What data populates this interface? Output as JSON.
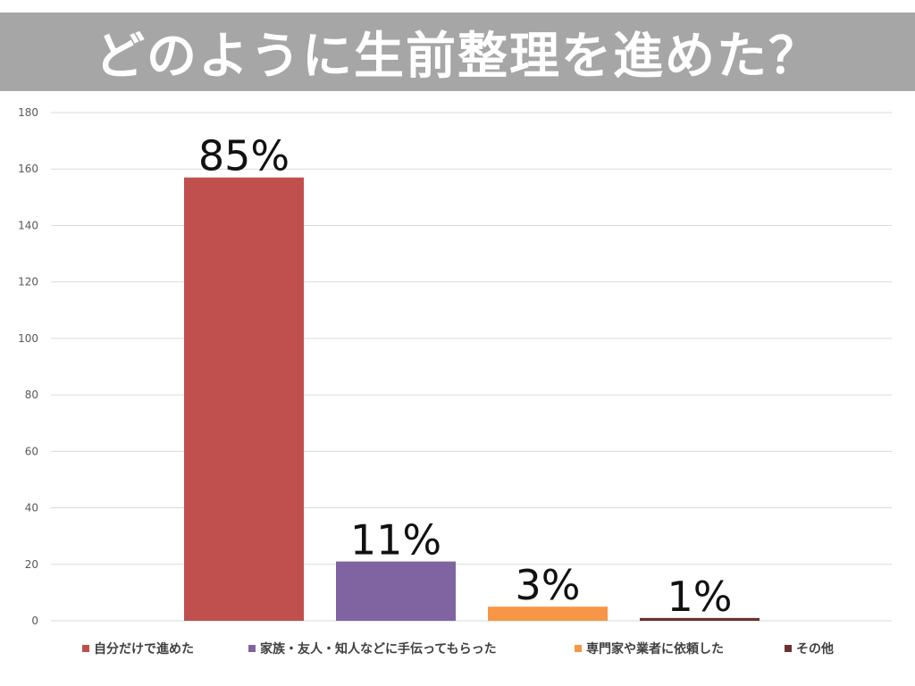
{
  "title": "どのように生前整理を進めた？",
  "colors": {
    "title_bg": "#a6a6a6",
    "gridline": "#d9d9d9",
    "series": [
      "#c0504d",
      "#8064a2",
      "#f79646",
      "#6b3131"
    ]
  },
  "chart_data": {
    "type": "bar",
    "categories": [
      "自分だけで進めた",
      "家族・友人・知人などに手伝ってもらった",
      "専門家や業者に依頼した",
      "その他"
    ],
    "values": [
      157,
      21,
      5,
      1
    ],
    "data_labels": [
      "85%",
      "11%",
      "3%",
      "1%"
    ],
    "ylim": [
      0,
      180
    ],
    "yticks": [
      0,
      20,
      40,
      60,
      80,
      100,
      120,
      140,
      160,
      180
    ],
    "grid": true,
    "legend_position": "bottom"
  }
}
